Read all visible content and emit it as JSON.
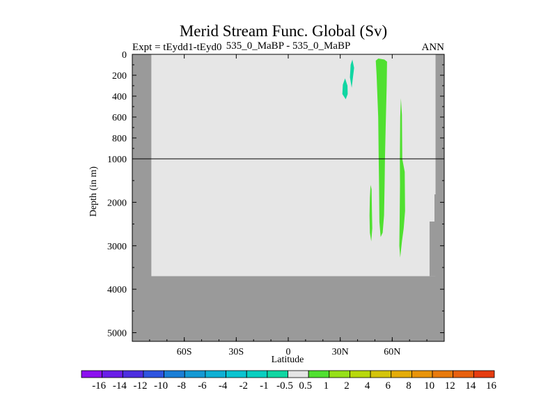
{
  "chart_data": {
    "type": "contour",
    "title": "Merid Stream Func. Global (Sv)",
    "subtitle_left": "Expt = tEydd1-tEyd0",
    "subtitle_center": "535_0_MaBP - 535_0_MaBP",
    "subtitle_right": "ANN",
    "xlabel": "Latitude",
    "ylabel": "Depth (in m)",
    "x_ticks": [
      {
        "value": -60,
        "label": "60S"
      },
      {
        "value": -30,
        "label": "30S"
      },
      {
        "value": 0,
        "label": "0"
      },
      {
        "value": 30,
        "label": "30N"
      },
      {
        "value": 60,
        "label": "60N"
      }
    ],
    "y_upper_ticks": [
      {
        "value": 0,
        "label": "0"
      },
      {
        "value": 200,
        "label": "200"
      },
      {
        "value": 400,
        "label": "400"
      },
      {
        "value": 600,
        "label": "600"
      },
      {
        "value": 800,
        "label": "800"
      },
      {
        "value": 1000,
        "label": "1000"
      }
    ],
    "y_lower_ticks": [
      {
        "value": 2000,
        "label": "2000"
      },
      {
        "value": 3000,
        "label": "3000"
      },
      {
        "value": 4000,
        "label": "4000"
      },
      {
        "value": 5000,
        "label": "5000"
      }
    ],
    "xlim": [
      -90,
      90
    ],
    "ylim": [
      0,
      5200
    ],
    "depth_axis_break": 1000,
    "land_color": "#9a9a9a",
    "ocean_color": "#e6e6e6",
    "ocean_extent": {
      "lat_min": -79,
      "lat_max": 85,
      "floor_depth": 3700
    },
    "features": [
      {
        "sign": "negative",
        "color": "#10d6a2",
        "outline": [
          [
            36.0,
            100
          ],
          [
            37.0,
            50
          ],
          [
            38.0,
            130
          ],
          [
            36.6,
            320
          ],
          [
            35.6,
            220
          ]
        ]
      },
      {
        "sign": "negative",
        "color": "#10d6a2",
        "outline": [
          [
            32.8,
            230
          ],
          [
            34.2,
            300
          ],
          [
            34.3,
            380
          ],
          [
            33.2,
            430
          ],
          [
            31.2,
            380
          ],
          [
            31.5,
            290
          ]
        ]
      },
      {
        "sign": "positive",
        "color": "#50e030",
        "outline": [
          [
            50.5,
            60
          ],
          [
            52.0,
            40
          ],
          [
            55.5,
            50
          ],
          [
            57.0,
            70
          ],
          [
            56.8,
            300
          ],
          [
            56.2,
            700
          ],
          [
            55.8,
            1000
          ],
          [
            55.6,
            1600
          ],
          [
            55.3,
            2300
          ],
          [
            54.5,
            2700
          ],
          [
            53.3,
            2800
          ],
          [
            52.6,
            2450
          ],
          [
            52.4,
            1600
          ],
          [
            52.2,
            1000
          ],
          [
            51.9,
            600
          ],
          [
            51.0,
            200
          ]
        ]
      },
      {
        "sign": "positive",
        "color": "#50e030",
        "outline": [
          [
            65.0,
            420
          ],
          [
            65.6,
            580
          ],
          [
            65.8,
            1000
          ],
          [
            67.2,
            1300
          ],
          [
            67.4,
            2200
          ],
          [
            66.6,
            2600
          ],
          [
            65.6,
            2900
          ],
          [
            64.6,
            3270
          ],
          [
            64.1,
            3000
          ],
          [
            64.3,
            2400
          ],
          [
            64.5,
            1600
          ],
          [
            64.4,
            1000
          ],
          [
            64.6,
            600
          ]
        ]
      },
      {
        "sign": "positive",
        "color": "#50e030",
        "outline": [
          [
            47.5,
            1600
          ],
          [
            48.1,
            1700
          ],
          [
            48.3,
            2200
          ],
          [
            48.5,
            2600
          ],
          [
            47.9,
            2900
          ],
          [
            47.1,
            2700
          ],
          [
            46.9,
            2300
          ],
          [
            47.1,
            1900
          ]
        ]
      }
    ],
    "colorbar": {
      "labels": [
        "-16",
        "-14",
        "-12",
        "-10",
        "-8",
        "-6",
        "-4",
        "-2",
        "-1",
        "-0.5",
        "0.5",
        "1",
        "2",
        "4",
        "6",
        "8",
        "10",
        "12",
        "14",
        "16"
      ],
      "colors": [
        "#8c10f0",
        "#6a1ee8",
        "#4d2ee0",
        "#2e54e0",
        "#1a7ed6",
        "#1499d4",
        "#0fb0d4",
        "#0ac4d0",
        "#08cfc0",
        "#10d6a2",
        "#e4e4e4",
        "#50e030",
        "#96e018",
        "#b8d80c",
        "#d4c40a",
        "#e4ac08",
        "#e8940a",
        "#e87a0c",
        "#e8600e",
        "#e63c10"
      ]
    }
  }
}
